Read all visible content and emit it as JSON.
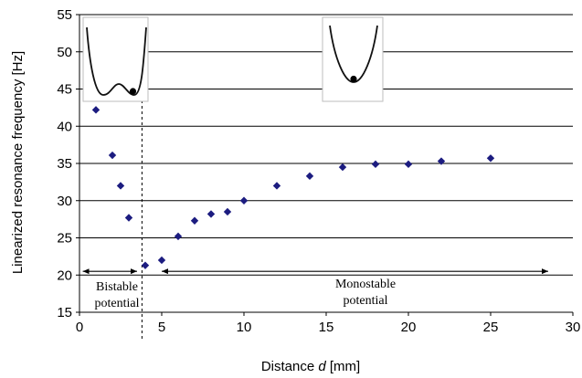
{
  "chart_data": {
    "type": "scatter",
    "xlabel_prefix": "Distance ",
    "xlabel_var": "d",
    "xlabel_suffix": " [mm]",
    "ylabel": "Linearized resonance frequency [Hz]",
    "xlim": [
      0,
      30
    ],
    "ylim": [
      15,
      55
    ],
    "x_ticks": [
      0,
      5,
      10,
      15,
      20,
      25,
      30
    ],
    "y_ticks": [
      15,
      20,
      25,
      30,
      35,
      40,
      45,
      50,
      55
    ],
    "grid": "horizontal",
    "marker": "diamond",
    "marker_color": "#1c1c80",
    "points": [
      {
        "x": 1,
        "y": 42.2
      },
      {
        "x": 2,
        "y": 36.1
      },
      {
        "x": 2.5,
        "y": 32
      },
      {
        "x": 3,
        "y": 27.7
      },
      {
        "x": 4,
        "y": 21.3
      },
      {
        "x": 5,
        "y": 22
      },
      {
        "x": 6,
        "y": 25.2
      },
      {
        "x": 7,
        "y": 27.3
      },
      {
        "x": 8,
        "y": 28.2
      },
      {
        "x": 9,
        "y": 28.5
      },
      {
        "x": 10,
        "y": 30
      },
      {
        "x": 12,
        "y": 32
      },
      {
        "x": 14,
        "y": 33.3
      },
      {
        "x": 16,
        "y": 34.5
      },
      {
        "x": 18,
        "y": 34.9
      },
      {
        "x": 20,
        "y": 34.9
      },
      {
        "x": 22,
        "y": 35.3
      },
      {
        "x": 25,
        "y": 35.7
      }
    ],
    "divider_x": 3.8,
    "annotations": {
      "bistable_line1": "Bistable",
      "bistable_line2": "potential",
      "monostable_line1": "Monostable",
      "monostable_line2": "potential"
    },
    "ranges": {
      "bistable": [
        0.2,
        3.5
      ],
      "monostable": [
        5,
        28.5
      ]
    }
  }
}
